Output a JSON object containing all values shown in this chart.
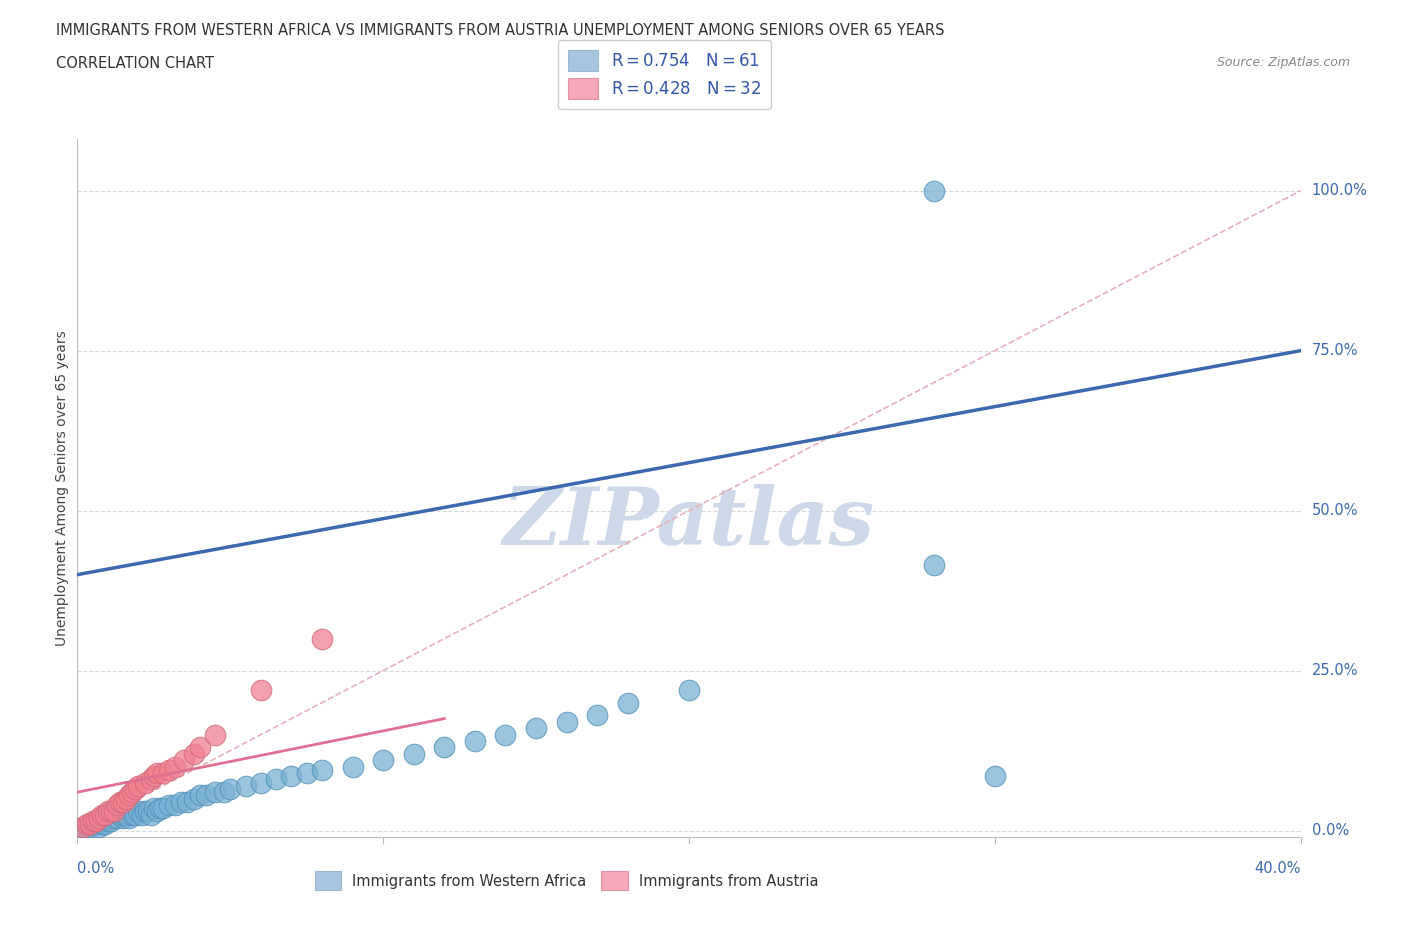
{
  "title_line1": "IMMIGRANTS FROM WESTERN AFRICA VS IMMIGRANTS FROM AUSTRIA UNEMPLOYMENT AMONG SENIORS OVER 65 YEARS",
  "title_line2": "CORRELATION CHART",
  "source": "Source: ZipAtlas.com",
  "xlabel_bottom_left": "0.0%",
  "xlabel_bottom_right": "40.0%",
  "ylabel": "Unemployment Among Seniors over 65 years",
  "ylabel_right_labels": [
    "100.0%",
    "75.0%",
    "50.0%",
    "25.0%",
    "0.0%"
  ],
  "ylabel_right_values": [
    1.0,
    0.75,
    0.5,
    0.25,
    0.0
  ],
  "xmin": 0.0,
  "xmax": 0.4,
  "ymin": -0.01,
  "ymax": 1.08,
  "legend_color1": "#a8c4e0",
  "legend_color2": "#f4a8b8",
  "series1_color": "#7ab0d4",
  "series2_color": "#f08090",
  "trendline1_color": "#3c68b0",
  "trendline2_color": "#e07090",
  "refline_color": "#e8b0b8",
  "watermark": "ZIPatlas",
  "watermark_color": "#cdd8e8",
  "grid_color": "#d8d8d8",
  "trendline1_x0": 0.0,
  "trendline1_y0": 0.4,
  "trendline1_x1": 0.4,
  "trendline1_y1": 0.75,
  "trendline2_x0": 0.0,
  "trendline2_y0": 0.06,
  "trendline2_x1": 0.12,
  "trendline2_y1": 0.175,
  "refline_x0": 0.0,
  "refline_y0": 0.0,
  "refline_x1": 0.4,
  "refline_y1": 1.0,
  "wa_x": [
    0.002,
    0.003,
    0.004,
    0.005,
    0.006,
    0.007,
    0.008,
    0.008,
    0.009,
    0.01,
    0.01,
    0.011,
    0.012,
    0.013,
    0.014,
    0.015,
    0.015,
    0.016,
    0.017,
    0.018,
    0.018,
    0.019,
    0.02,
    0.021,
    0.022,
    0.023,
    0.024,
    0.025,
    0.026,
    0.027,
    0.028,
    0.03,
    0.032,
    0.034,
    0.036,
    0.038,
    0.04,
    0.042,
    0.045,
    0.048,
    0.05,
    0.055,
    0.06,
    0.065,
    0.07,
    0.075,
    0.08,
    0.09,
    0.1,
    0.11,
    0.12,
    0.13,
    0.14,
    0.15,
    0.16,
    0.17,
    0.18,
    0.2,
    0.28,
    0.3,
    0.28
  ],
  "wa_y": [
    0.005,
    0.005,
    0.005,
    0.01,
    0.01,
    0.005,
    0.01,
    0.015,
    0.01,
    0.015,
    0.02,
    0.015,
    0.02,
    0.02,
    0.025,
    0.02,
    0.025,
    0.025,
    0.02,
    0.025,
    0.03,
    0.025,
    0.03,
    0.025,
    0.03,
    0.03,
    0.025,
    0.035,
    0.03,
    0.035,
    0.035,
    0.04,
    0.04,
    0.045,
    0.045,
    0.05,
    0.055,
    0.055,
    0.06,
    0.06,
    0.065,
    0.07,
    0.075,
    0.08,
    0.085,
    0.09,
    0.095,
    0.1,
    0.11,
    0.12,
    0.13,
    0.14,
    0.15,
    0.16,
    0.17,
    0.18,
    0.2,
    0.22,
    0.415,
    0.085,
    1.0
  ],
  "au_x": [
    0.002,
    0.003,
    0.004,
    0.005,
    0.006,
    0.007,
    0.008,
    0.009,
    0.01,
    0.011,
    0.012,
    0.013,
    0.014,
    0.015,
    0.016,
    0.017,
    0.018,
    0.019,
    0.02,
    0.022,
    0.024,
    0.025,
    0.026,
    0.028,
    0.03,
    0.032,
    0.035,
    0.038,
    0.04,
    0.045,
    0.06,
    0.08
  ],
  "au_y": [
    0.005,
    0.01,
    0.01,
    0.015,
    0.015,
    0.02,
    0.025,
    0.025,
    0.03,
    0.03,
    0.03,
    0.04,
    0.045,
    0.045,
    0.05,
    0.055,
    0.06,
    0.065,
    0.07,
    0.075,
    0.08,
    0.085,
    0.09,
    0.09,
    0.095,
    0.1,
    0.11,
    0.12,
    0.13,
    0.15,
    0.22,
    0.3
  ]
}
